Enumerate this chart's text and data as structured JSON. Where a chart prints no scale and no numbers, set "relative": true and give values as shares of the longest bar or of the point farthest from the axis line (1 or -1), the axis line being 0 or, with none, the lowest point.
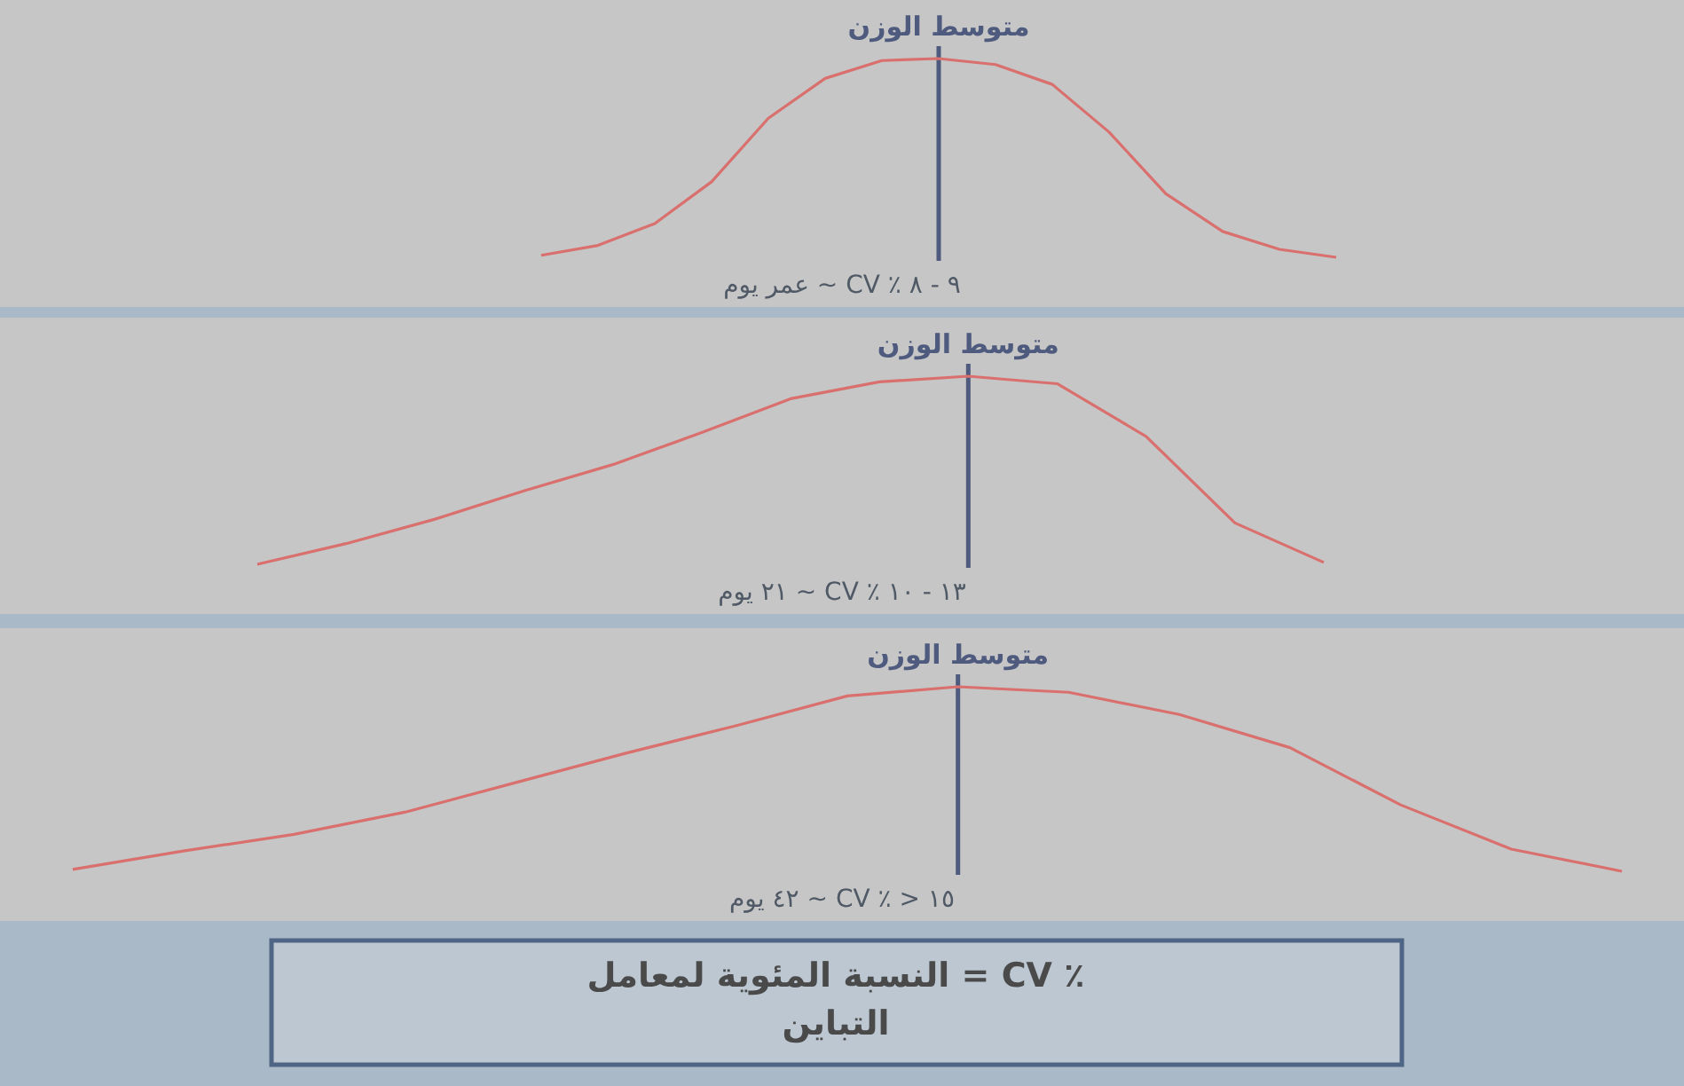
{
  "chart_data": [
    {
      "type": "line",
      "relative": true,
      "xlabel": "٩ - ٨ ٪ CV ~ عمر يوم",
      "color": "#d9706e",
      "annotations": [
        "متوسط الوزن"
      ],
      "categories": [
        null,
        null,
        null,
        null,
        null,
        null,
        null,
        null,
        null,
        null,
        null,
        null,
        null,
        null,
        null
      ],
      "values": [
        0.01,
        0.06,
        0.17,
        0.38,
        0.7,
        0.9,
        0.99,
        1,
        0.97,
        0.87,
        0.63,
        0.32,
        0.13,
        0.04,
        0
      ]
    },
    {
      "type": "line",
      "relative": true,
      "xlabel": "١٣ - ١٠ ٪ CV ~ ٢١ يوم",
      "color": "#d9706e",
      "annotations": [
        "متوسط الوزن"
      ],
      "categories": [
        null,
        null,
        null,
        null,
        null,
        null,
        null,
        null,
        null,
        null,
        null,
        null,
        null
      ],
      "values": [
        0,
        0.11,
        0.24,
        0.39,
        0.53,
        0.7,
        0.88,
        0.97,
        1,
        0.96,
        0.68,
        0.22,
        0.01
      ]
    },
    {
      "type": "line",
      "relative": true,
      "xlabel": "١٥ < ٪ CV ~ ٤٢ يوم",
      "color": "#d9706e",
      "annotations": [
        "متوسط الوزن"
      ],
      "categories": [
        null,
        null,
        null,
        null,
        null,
        null,
        null,
        null,
        null,
        null,
        null,
        null,
        null,
        null,
        null
      ],
      "values": [
        0.01,
        0.11,
        0.2,
        0.32,
        0.48,
        0.64,
        0.79,
        0.95,
        1,
        0.97,
        0.85,
        0.67,
        0.36,
        0.12,
        0
      ]
    },
    {
      "type": "other",
      "title": "٪ CV = النسبة المئوية لمعامل التباين"
    }
  ]
}
